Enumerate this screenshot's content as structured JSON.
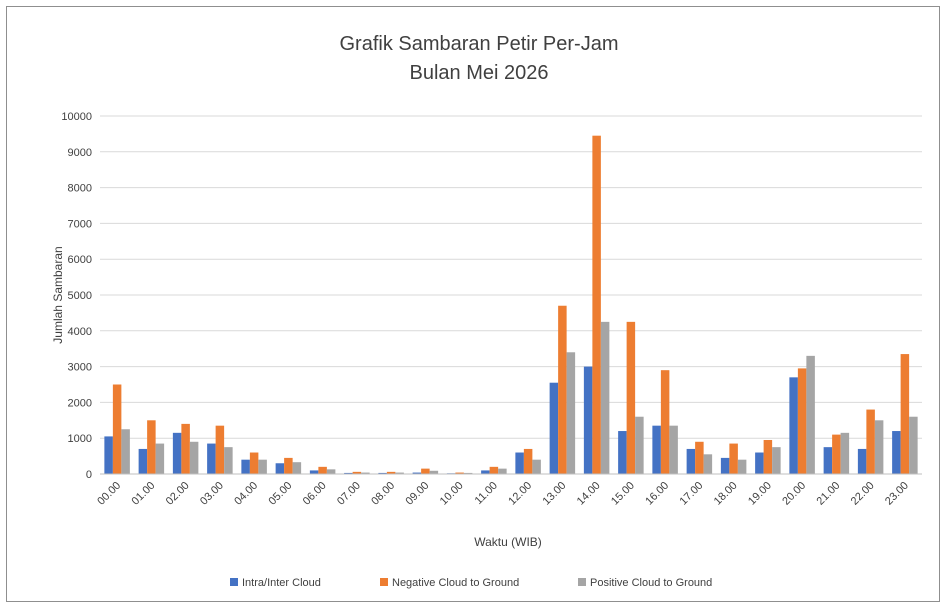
{
  "chart_data": {
    "type": "bar",
    "title": "Grafik Sambaran Petir Per-Jam",
    "subtitle": "Bulan Mei 2026",
    "xlabel": "Waktu (WIB)",
    "ylabel": "Jumlah Sambaran",
    "ylim": [
      0,
      10000
    ],
    "yticks": [
      0,
      1000,
      2000,
      3000,
      4000,
      5000,
      6000,
      7000,
      8000,
      9000,
      10000
    ],
    "grid": true,
    "legend_position": "bottom",
    "categories": [
      "00.00",
      "01.00",
      "02.00",
      "03.00",
      "04.00",
      "05.00",
      "06.00",
      "07.00",
      "08.00",
      "09.00",
      "10.00",
      "11.00",
      "12.00",
      "13.00",
      "14.00",
      "15.00",
      "16.00",
      "17.00",
      "18.00",
      "19.00",
      "20.00",
      "21.00",
      "22.00",
      "23.00"
    ],
    "series": [
      {
        "name": "Intra/Inter Cloud",
        "color": "#4472c4",
        "values": [
          1050,
          700,
          1150,
          850,
          400,
          300,
          100,
          30,
          30,
          40,
          20,
          100,
          600,
          2550,
          3000,
          1200,
          1350,
          700,
          450,
          600,
          2700,
          750,
          700,
          1200
        ]
      },
      {
        "name": "Negative Cloud to Ground",
        "color": "#ed7d31",
        "values": [
          2500,
          1500,
          1400,
          1350,
          600,
          450,
          200,
          60,
          60,
          150,
          40,
          200,
          700,
          4700,
          9450,
          4250,
          2900,
          900,
          850,
          950,
          2950,
          1100,
          1800,
          3350
        ]
      },
      {
        "name": "Positive Cloud to Ground",
        "color": "#a5a5a5",
        "values": [
          1250,
          850,
          900,
          750,
          400,
          330,
          130,
          40,
          40,
          90,
          30,
          150,
          400,
          3400,
          4250,
          1600,
          1350,
          550,
          400,
          750,
          3300,
          1150,
          1500,
          1600
        ]
      }
    ]
  }
}
